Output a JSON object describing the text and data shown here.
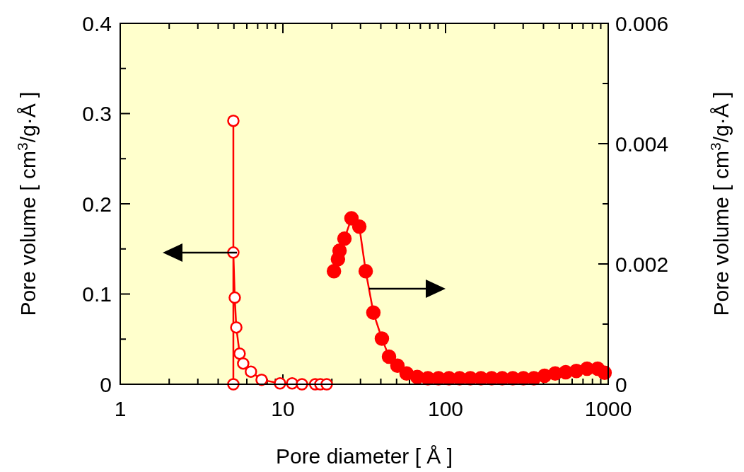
{
  "chart_data": {
    "type": "line",
    "xlabel": "Pore diameter [ Å ]",
    "ylabel": "Pore volume [ cm$^{3}$/g·Å ]",
    "y2label": "Pore volume [ cm$^{3}$/g·Å ]",
    "log": "x",
    "xlim": [
      1,
      1000
    ],
    "ylim": [
      0,
      0.4
    ],
    "y2lim": [
      0,
      0.006
    ],
    "xticks": [
      1,
      {
        "value": 2,
        "label": null
      },
      {
        "value": 3,
        "label": null
      },
      {
        "value": 4,
        "label": null
      },
      {
        "value": 5,
        "label": null
      },
      {
        "value": 6,
        "label": null
      },
      {
        "value": 7,
        "label": null
      },
      {
        "value": 8,
        "label": null
      },
      {
        "value": 9,
        "label": null
      },
      10,
      {
        "value": 20,
        "label": null
      },
      {
        "value": 30,
        "label": null
      },
      {
        "value": 40,
        "label": null
      },
      {
        "value": 50,
        "label": null
      },
      {
        "value": 60,
        "label": null
      },
      {
        "value": 70,
        "label": null
      },
      {
        "value": 80,
        "label": null
      },
      {
        "value": 90,
        "label": null
      },
      100,
      {
        "value": 200,
        "label": null
      },
      {
        "value": 300,
        "label": null
      },
      {
        "value": 400,
        "label": null
      },
      {
        "value": 500,
        "label": null
      },
      {
        "value": 600,
        "label": null
      },
      {
        "value": 700,
        "label": null
      },
      {
        "value": 800,
        "label": null
      },
      {
        "value": 900,
        "label": null
      },
      1000
    ],
    "yticks": [
      0,
      {
        "value": 0.05,
        "label": null
      },
      0.1,
      {
        "value": 0.15,
        "label": null
      },
      0.2,
      {
        "value": 0.25,
        "label": null
      },
      0.3,
      {
        "value": 0.35,
        "label": null
      },
      0.4
    ],
    "y2ticks": [
      0,
      {
        "value": 0.001,
        "label": null
      },
      0.002,
      {
        "value": 0.003,
        "label": null
      },
      0.004,
      {
        "value": 0.005,
        "label": null
      },
      0.006
    ],
    "grid": false,
    "marker": "circle",
    "line_style": "solid",
    "series": [
      {
        "color": "#ff0000",
        "x": [
          4.96,
          4.96,
          4.96,
          5.06,
          5.17,
          5.42,
          5.7,
          6.36,
          7.4,
          9.6,
          11.4,
          13.1,
          15.8,
          17,
          18.6
        ],
        "values": [
          0,
          0.292,
          0.146,
          0.096,
          0.063,
          0.034,
          0.023,
          0.014,
          0.005,
          0.001,
          0.001,
          0,
          0,
          0,
          0
        ]
      },
      {
        "color": "#ff0000",
        "axis": "y2",
        "x": [
          20.6,
          21.8,
          22.3,
          23.9,
          26.4,
          29.5,
          32.3,
          36,
          40.6,
          44.9,
          50.6,
          57.6,
          67,
          77.9,
          90.5,
          105,
          122,
          142,
          165,
          192,
          223,
          259,
          301,
          349,
          406,
          472,
          548,
          637,
          741,
          861,
          950
        ],
        "values": [
          0.00188,
          0.00208,
          0.00222,
          0.00242,
          0.00276,
          0.00262,
          0.00188,
          0.00119,
          0.00076,
          0.00046,
          0.00031,
          0.00018,
          0.00012,
          0.0001,
          0.0001,
          0.0001,
          0.0001,
          0.0001,
          0.0001,
          0.0001,
          0.0001,
          0.0001,
          0.0001,
          0.0001,
          0.00014,
          0.00018,
          0.0002,
          0.00022,
          0.00026,
          0.00026,
          0.00019
        ]
      }
    ]
  }
}
